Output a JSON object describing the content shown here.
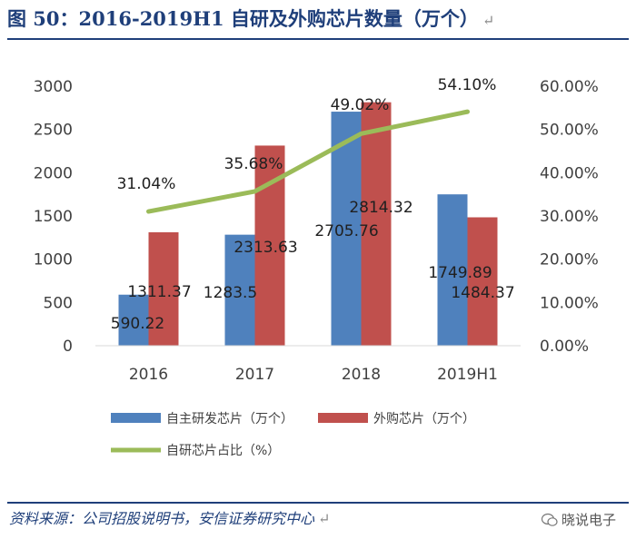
{
  "title": "图 50：2016-2019H1 自研及外购芯片数量（万个）",
  "source": "资料来源：公司招股说明书，安信证券研究中心",
  "watermark": "晓说电子",
  "return_mark": "↵",
  "colors": {
    "title": "#1f3f7a",
    "self_dev": "#4f81bd",
    "purchased": "#c0504d",
    "ratio": "#9bbb59"
  },
  "chart_data": {
    "type": "bar",
    "categories": [
      "2016",
      "2017",
      "2018",
      "2019H1"
    ],
    "series": [
      {
        "name": "自主研发芯片（万个）",
        "type": "bar",
        "axis": "left",
        "values": [
          590.22,
          1283.5,
          2705.76,
          1749.89
        ],
        "labels": [
          "590.22",
          "1283.5",
          "2705.76",
          "1749.89"
        ]
      },
      {
        "name": "外购芯片（万个）",
        "type": "bar",
        "axis": "left",
        "values": [
          1311.37,
          2313.63,
          2814.32,
          1484.37
        ],
        "labels": [
          "1311.37",
          "2313.63",
          "2814.32",
          "1484.37"
        ]
      },
      {
        "name": "自研芯片占比（%）",
        "type": "line",
        "axis": "right",
        "values": [
          31.04,
          35.68,
          49.02,
          54.1
        ],
        "labels": [
          "31.04%",
          "35.68%",
          "49.02%",
          "54.10%"
        ]
      }
    ],
    "y_left": {
      "range": [
        0,
        3000
      ],
      "ticks": [
        "0",
        "500",
        "1000",
        "1500",
        "2000",
        "2500",
        "3000"
      ]
    },
    "y_right": {
      "range": [
        0,
        60
      ],
      "ticks": [
        "0.00%",
        "10.00%",
        "20.00%",
        "30.00%",
        "40.00%",
        "50.00%",
        "60.00%"
      ]
    },
    "grid": false,
    "legend_position": "bottom"
  }
}
